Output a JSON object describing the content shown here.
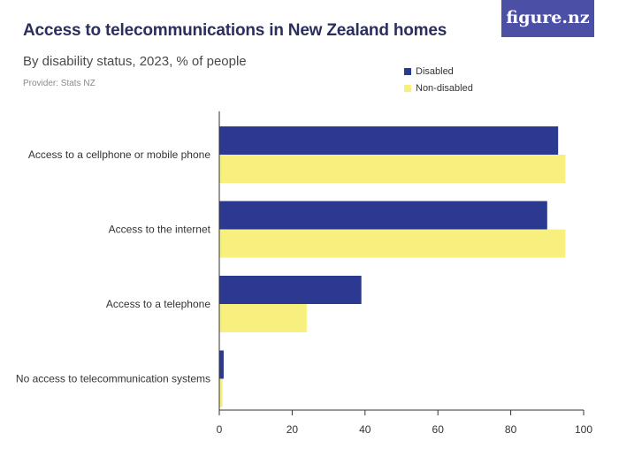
{
  "header": {
    "title": "Access to telecommunications in New Zealand homes",
    "subtitle": "By disability status, 2023, % of people",
    "provider": "Provider: Stats NZ",
    "logo": "figure.nz"
  },
  "colors": {
    "disabled": "#2b3990",
    "non_disabled": "#f7f07e",
    "axis": "#333333",
    "logo_bg": "#4b4fa6"
  },
  "chart_data": {
    "type": "bar",
    "orientation": "horizontal",
    "categories": [
      "Access to a cellphone or mobile phone",
      "Access to the internet",
      "Access to a telephone",
      "No access to telecommunication systems"
    ],
    "series": [
      {
        "name": "Disabled",
        "values": [
          93,
          90,
          39,
          1.2
        ],
        "color": "#2b3990"
      },
      {
        "name": "Non-disabled",
        "values": [
          95,
          95,
          24,
          0.9
        ],
        "color": "#f7f07e"
      }
    ],
    "xlim": [
      0,
      100
    ],
    "xticks": [
      0,
      20,
      40,
      60,
      80,
      100
    ],
    "grid": false,
    "legend_position": "top-right"
  }
}
